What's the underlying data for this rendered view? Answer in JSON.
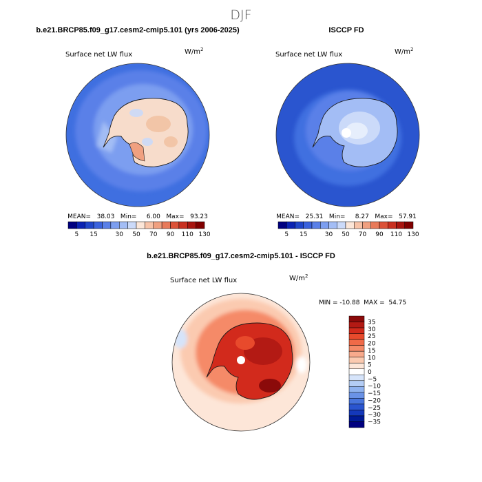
{
  "season": "DJF",
  "panels": [
    {
      "heading": "b.e21.BRCP85.f09_g17.cesm2-cmip5.101 (yrs 2006-2025)",
      "variable": "Surface net LW flux",
      "units": "W/m",
      "units_exp": "2",
      "stats_text": "MEAN=   38.03   Min=     6.00   Max=   93.23",
      "colorbar_ticks": [
        "5",
        "15",
        "30",
        "50",
        "70",
        "90",
        "110",
        "130"
      ]
    },
    {
      "heading": "ISCCP FD",
      "variable": "Surface net LW flux",
      "units": "W/m",
      "units_exp": "2",
      "stats_text": "MEAN=   25.31   Min=     8.27   Max=   57.91",
      "colorbar_ticks": [
        "5",
        "15",
        "30",
        "50",
        "70",
        "90",
        "110",
        "130"
      ]
    }
  ],
  "difference": {
    "heading": "b.e21.BRCP85.f09_g17.cesm2-cmip5.101 - ISCCP FD",
    "variable": "Surface net LW flux",
    "units": "W/m",
    "units_exp": "2",
    "minmax_text": "MIN = -10.88  MAX =  54.75"
  },
  "chart_data": [
    {
      "type": "heatmap",
      "projection": "south-polar-stereographic",
      "title": "b.e21.BRCP85.f09_g17.cesm2-cmip5.101 (yrs 2006-2025)",
      "variable": "Surface net LW flux",
      "units": "W/m2",
      "mean": 38.03,
      "min": 6.0,
      "max": 93.23,
      "levels": [
        5,
        10,
        15,
        20,
        25,
        30,
        40,
        50,
        60,
        70,
        80,
        90,
        100,
        110,
        120,
        130
      ],
      "colors": [
        "#000080",
        "#0a22b2",
        "#1f45c9",
        "#3a62dd",
        "#5a80e8",
        "#7c9ef0",
        "#a3bdf5",
        "#cbdaf9",
        "#fbe6d8",
        "#f7c3a8",
        "#f0a080",
        "#e87a5a",
        "#dc5238",
        "#c93020",
        "#a81510",
        "#800000"
      ],
      "colorbar_labels": [
        "5",
        "15",
        "30",
        "50",
        "70",
        "90",
        "110",
        "130"
      ]
    },
    {
      "type": "heatmap",
      "projection": "south-polar-stereographic",
      "title": "ISCCP FD",
      "variable": "Surface net LW flux",
      "units": "W/m2",
      "mean": 25.31,
      "min": 8.27,
      "max": 57.91,
      "levels": [
        5,
        10,
        15,
        20,
        25,
        30,
        40,
        50,
        60,
        70,
        80,
        90,
        100,
        110,
        120,
        130
      ],
      "colors": [
        "#000080",
        "#0a22b2",
        "#1f45c9",
        "#3a62dd",
        "#5a80e8",
        "#7c9ef0",
        "#a3bdf5",
        "#cbdaf9",
        "#fbe6d8",
        "#f7c3a8",
        "#f0a080",
        "#e87a5a",
        "#dc5238",
        "#c93020",
        "#a81510",
        "#800000"
      ],
      "colorbar_labels": [
        "5",
        "15",
        "30",
        "50",
        "70",
        "90",
        "110",
        "130"
      ]
    },
    {
      "type": "heatmap",
      "projection": "south-polar-stereographic",
      "title": "b.e21.BRCP85.f09_g17.cesm2-cmip5.101 - ISCCP FD",
      "variable": "Surface net LW flux",
      "units": "W/m2",
      "min": -10.88,
      "max": 54.75,
      "colorbar_labels": [
        "35",
        "30",
        "25",
        "20",
        "15",
        "10",
        "5",
        "0",
        "-5",
        "-10",
        "-15",
        "-20",
        "-25",
        "-30",
        "-35"
      ],
      "colors_top_to_bottom": [
        "#8b0a0a",
        "#b31a14",
        "#d22a1c",
        "#e84a2c",
        "#f06a48",
        "#f58a68",
        "#f8aa8c",
        "#fbcab0",
        "#fde6d8",
        "#ffffff",
        "#d6e4fa",
        "#b4cdf5",
        "#8fb2ef",
        "#6a92e6",
        "#4774dc",
        "#2a55cf",
        "#1438ba",
        "#001a96",
        "#000080"
      ]
    }
  ]
}
